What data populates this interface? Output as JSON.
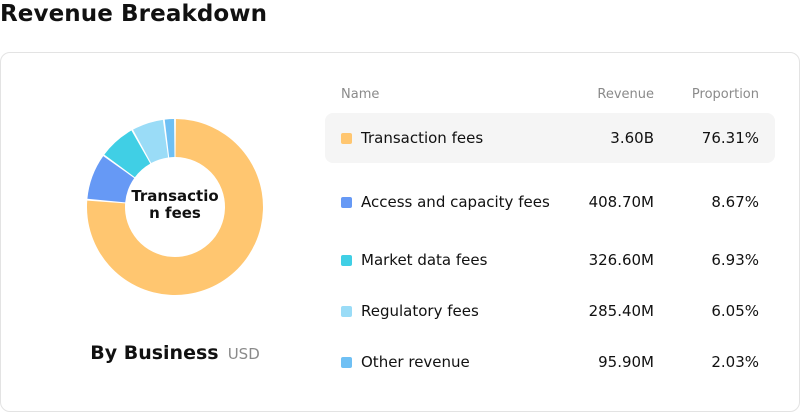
{
  "page": {
    "title": "Revenue Breakdown"
  },
  "chart_data": {
    "type": "pie",
    "variant": "donut",
    "center_label": "Transaction fees",
    "footer_title": "By Business",
    "footer_unit": "USD",
    "columns": {
      "name": "Name",
      "revenue": "Revenue",
      "proportion": "Proportion"
    },
    "slices": [
      {
        "name": "Transaction fees",
        "revenue": "3.60B",
        "proportion": "76.31%",
        "value": 76.31,
        "color": "#ffc670"
      },
      {
        "name": "Access and capacity fees",
        "revenue": "408.70M",
        "proportion": "8.67%",
        "value": 8.67,
        "color": "#6699f5"
      },
      {
        "name": "Market data fees",
        "revenue": "326.60M",
        "proportion": "6.93%",
        "value": 6.93,
        "color": "#40cfe5"
      },
      {
        "name": "Regulatory fees",
        "revenue": "285.40M",
        "proportion": "6.05%",
        "value": 6.05,
        "color": "#9adcf7"
      },
      {
        "name": "Other revenue",
        "revenue": "95.90M",
        "proportion": "2.03%",
        "value": 2.03,
        "color": "#6fc0f4"
      }
    ],
    "active_index": 0
  }
}
